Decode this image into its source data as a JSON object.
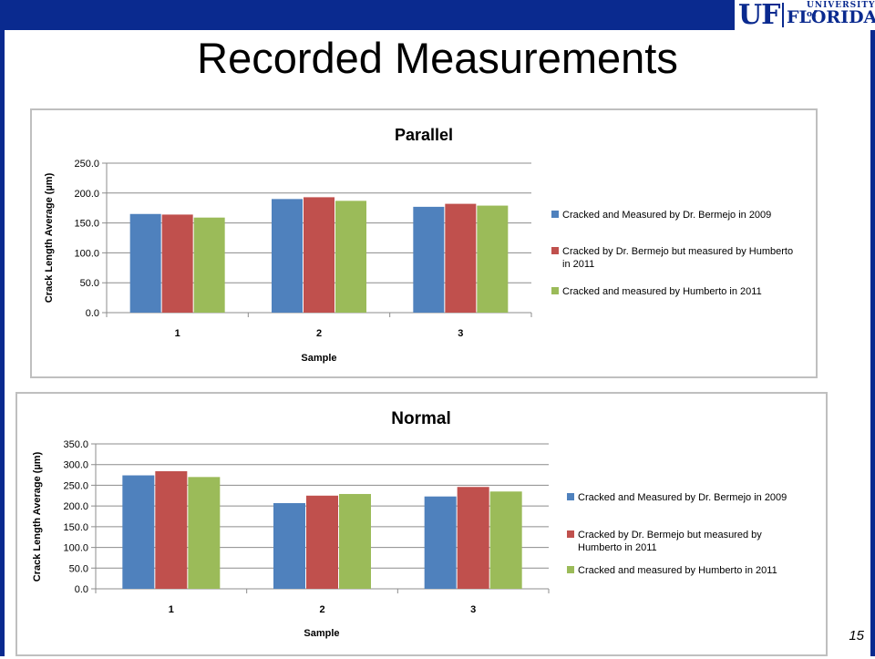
{
  "slide": {
    "title": "Recorded Measurements",
    "page_number": "15",
    "logo": {
      "uf": "UF",
      "university": "UNIVERSITY of",
      "florida": "FLORIDA"
    }
  },
  "colors": {
    "frame": "#0a2a8f",
    "series": [
      "#4f81bd",
      "#c0504d",
      "#9bbb59"
    ]
  },
  "chart_data": [
    {
      "type": "bar",
      "title": "Parallel",
      "xlabel": "Sample",
      "ylabel": "Crack Length Average (µm)",
      "categories": [
        "1",
        "2",
        "3"
      ],
      "ylim": [
        0,
        250
      ],
      "yticks": [
        "0.0",
        "50.0",
        "100.0",
        "150.0",
        "200.0",
        "250.0"
      ],
      "grid": true,
      "legend_position": "right",
      "series": [
        {
          "name": "Cracked and  Measured  by Dr. Bermejo in  2009",
          "values": [
            165,
            190,
            177
          ]
        },
        {
          "name": "Cracked  by Dr. Bermejo but measured by Humberto in 2011",
          "values": [
            164,
            193,
            182
          ]
        },
        {
          "name": "Cracked and measured by Humberto in  2011",
          "values": [
            159,
            187,
            179
          ]
        }
      ]
    },
    {
      "type": "bar",
      "title": "Normal",
      "xlabel": "Sample",
      "ylabel": "Crack Length Average (µm)",
      "categories": [
        "1",
        "2",
        "3"
      ],
      "ylim": [
        0,
        350
      ],
      "yticks": [
        "0.0",
        "50.0",
        "100.0",
        "150.0",
        "200.0",
        "250.0",
        "300.0",
        "350.0"
      ],
      "grid": true,
      "legend_position": "right",
      "series": [
        {
          "name": "Cracked and  Measured  by Dr. Bermejo in  2009",
          "values": [
            274,
            207,
            223
          ]
        },
        {
          "name": "Cracked  by Dr. Bermejo but measured by Humberto in 2011",
          "values": [
            284,
            225,
            246
          ]
        },
        {
          "name": "Cracked and measured by Humberto in  2011",
          "values": [
            270,
            229,
            235
          ]
        }
      ]
    }
  ]
}
